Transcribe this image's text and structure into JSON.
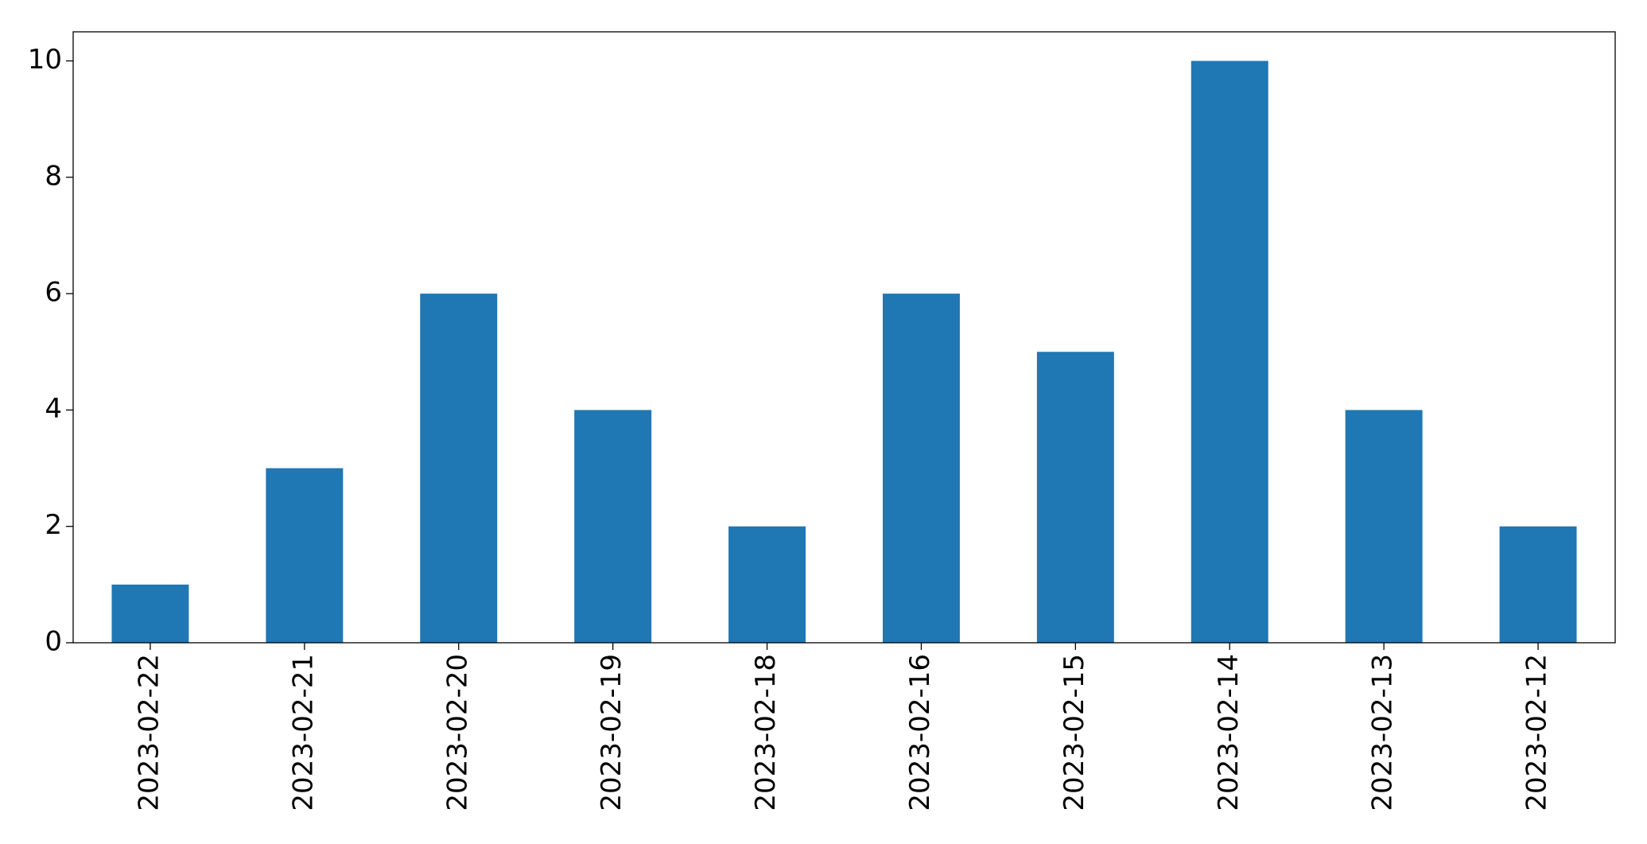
{
  "chart_data": {
    "type": "bar",
    "categories": [
      "2023-02-22",
      "2023-02-21",
      "2023-02-20",
      "2023-02-19",
      "2023-02-18",
      "2023-02-16",
      "2023-02-15",
      "2023-02-14",
      "2023-02-13",
      "2023-02-12"
    ],
    "values": [
      1,
      3,
      6,
      4,
      2,
      6,
      5,
      10,
      4,
      2
    ],
    "color": "#1f77b4",
    "ylim": [
      0,
      10.5
    ],
    "yticks": [
      0,
      2,
      4,
      6,
      8,
      10
    ],
    "grid": false
  }
}
